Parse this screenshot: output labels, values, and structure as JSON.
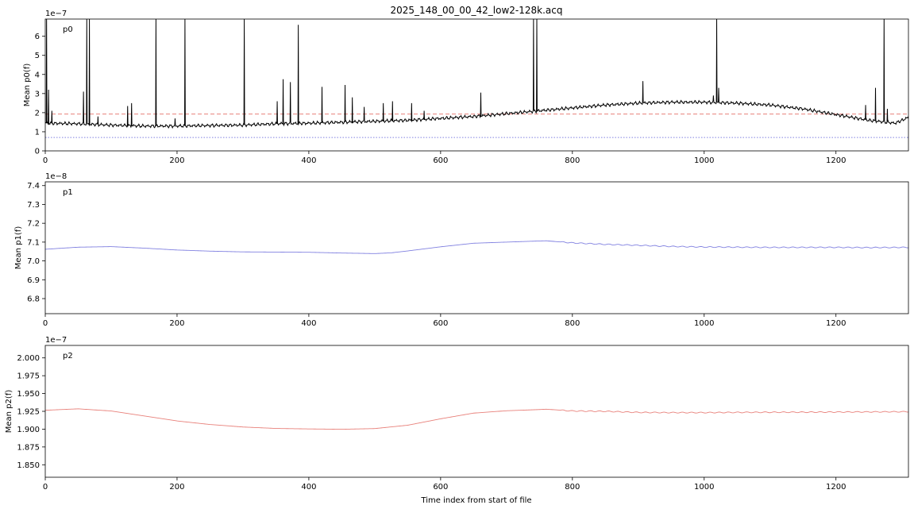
{
  "title": "2025_148_00_00_42_low2-128k.acq",
  "xlabel": "Time index from start of file",
  "chart_data": [
    {
      "type": "line",
      "panel_label": "p0",
      "ylabel": "Mean p0(f)",
      "offset_text": "1e−7",
      "xlim": [
        0,
        1310
      ],
      "ylim": [
        0,
        6.9
      ],
      "xticks": [
        0,
        200,
        400,
        600,
        800,
        1000,
        1200
      ],
      "yticks": [
        0,
        1,
        2,
        3,
        4,
        5,
        6
      ],
      "ytick_labels": [
        "0",
        "1",
        "2",
        "3",
        "4",
        "5",
        "6"
      ],
      "grid": false,
      "color": "#000000",
      "baseline_x": [
        0,
        50,
        100,
        150,
        200,
        250,
        300,
        350,
        400,
        450,
        500,
        550,
        600,
        650,
        700,
        750,
        800,
        850,
        900,
        950,
        1000,
        1050,
        1100,
        1150,
        1200,
        1250,
        1290,
        1310
      ],
      "baseline_y": [
        1.45,
        1.42,
        1.35,
        1.3,
        1.3,
        1.33,
        1.35,
        1.42,
        1.45,
        1.5,
        1.55,
        1.6,
        1.7,
        1.8,
        1.95,
        2.1,
        2.25,
        2.4,
        2.5,
        2.55,
        2.55,
        2.5,
        2.4,
        2.2,
        1.9,
        1.6,
        1.45,
        1.75
      ],
      "spikes": [
        {
          "x": 2,
          "y": 6.9
        },
        {
          "x": 5,
          "y": 3.2
        },
        {
          "x": 10,
          "y": 2.1
        },
        {
          "x": 58,
          "y": 3.1
        },
        {
          "x": 63,
          "y": 6.9
        },
        {
          "x": 67,
          "y": 6.9
        },
        {
          "x": 80,
          "y": 1.8
        },
        {
          "x": 125,
          "y": 2.35
        },
        {
          "x": 131,
          "y": 2.5
        },
        {
          "x": 168,
          "y": 6.9
        },
        {
          "x": 197,
          "y": 1.7
        },
        {
          "x": 212,
          "y": 6.9
        },
        {
          "x": 302,
          "y": 6.9
        },
        {
          "x": 352,
          "y": 2.6
        },
        {
          "x": 361,
          "y": 3.75
        },
        {
          "x": 372,
          "y": 3.6
        },
        {
          "x": 384,
          "y": 6.6
        },
        {
          "x": 420,
          "y": 3.35
        },
        {
          "x": 455,
          "y": 3.45
        },
        {
          "x": 466,
          "y": 2.8
        },
        {
          "x": 484,
          "y": 2.3
        },
        {
          "x": 513,
          "y": 2.5
        },
        {
          "x": 527,
          "y": 2.6
        },
        {
          "x": 556,
          "y": 2.5
        },
        {
          "x": 575,
          "y": 2.1
        },
        {
          "x": 661,
          "y": 3.05
        },
        {
          "x": 741,
          "y": 6.9
        },
        {
          "x": 746,
          "y": 6.9
        },
        {
          "x": 907,
          "y": 3.65
        },
        {
          "x": 1014,
          "y": 2.9
        },
        {
          "x": 1019,
          "y": 6.9
        },
        {
          "x": 1022,
          "y": 3.3
        },
        {
          "x": 1245,
          "y": 2.4
        },
        {
          "x": 1260,
          "y": 3.3
        },
        {
          "x": 1273,
          "y": 6.9
        },
        {
          "x": 1278,
          "y": 2.2
        }
      ],
      "reference_lines": [
        {
          "y": 1.93,
          "color": "#e8807a",
          "style": "dashed"
        },
        {
          "y": 0.7,
          "color": "#8080e0",
          "style": "dotted"
        }
      ]
    },
    {
      "type": "line",
      "panel_label": "p1",
      "ylabel": "Mean p1(f)",
      "offset_text": "1e−8",
      "xlim": [
        0,
        1310
      ],
      "ylim": [
        6.72,
        7.42
      ],
      "xticks": [
        0,
        200,
        400,
        600,
        800,
        1000,
        1200
      ],
      "yticks": [
        6.8,
        6.9,
        7.0,
        7.1,
        7.2,
        7.3,
        7.4
      ],
      "ytick_labels": [
        "6.8",
        "6.9",
        "7.0",
        "7.1",
        "7.2",
        "7.3",
        "7.4"
      ],
      "grid": false,
      "color": "#8080e0",
      "x": [
        0,
        50,
        100,
        150,
        200,
        250,
        300,
        350,
        400,
        450,
        500,
        525,
        550,
        600,
        650,
        700,
        750,
        760,
        800,
        850,
        900,
        950,
        1000,
        1050,
        1100,
        1150,
        1200,
        1250,
        1310
      ],
      "y": [
        7.062,
        7.073,
        7.076,
        7.068,
        7.058,
        7.052,
        7.048,
        7.047,
        7.046,
        7.042,
        7.039,
        7.043,
        7.053,
        7.075,
        7.094,
        7.1,
        7.106,
        7.107,
        7.096,
        7.088,
        7.083,
        7.077,
        7.074,
        7.073,
        7.072,
        7.072,
        7.072,
        7.071,
        7.072
      ]
    },
    {
      "type": "line",
      "panel_label": "p2",
      "ylabel": "Mean p2(f)",
      "offset_text": "1e−7",
      "xlim": [
        0,
        1310
      ],
      "ylim": [
        1.8325,
        2.0175
      ],
      "xticks": [
        0,
        200,
        400,
        600,
        800,
        1000,
        1200
      ],
      "yticks": [
        1.85,
        1.875,
        1.9,
        1.925,
        1.95,
        1.975,
        2.0
      ],
      "ytick_labels": [
        "1.850",
        "1.875",
        "1.900",
        "1.925",
        "1.950",
        "1.975",
        "2.000"
      ],
      "grid": false,
      "color": "#e8807a",
      "x": [
        0,
        50,
        100,
        150,
        200,
        250,
        300,
        350,
        400,
        450,
        500,
        550,
        600,
        650,
        700,
        750,
        760,
        800,
        850,
        900,
        950,
        1000,
        1050,
        1100,
        1150,
        1200,
        1250,
        1310
      ],
      "y": [
        1.9265,
        1.9285,
        1.9255,
        1.9185,
        1.9115,
        1.9065,
        1.903,
        1.901,
        1.9003,
        1.8998,
        1.9008,
        1.9055,
        1.9145,
        1.9225,
        1.9258,
        1.9275,
        1.928,
        1.9255,
        1.925,
        1.9235,
        1.9232,
        1.9232,
        1.9235,
        1.9237,
        1.9238,
        1.924,
        1.9242,
        1.9245
      ]
    }
  ]
}
